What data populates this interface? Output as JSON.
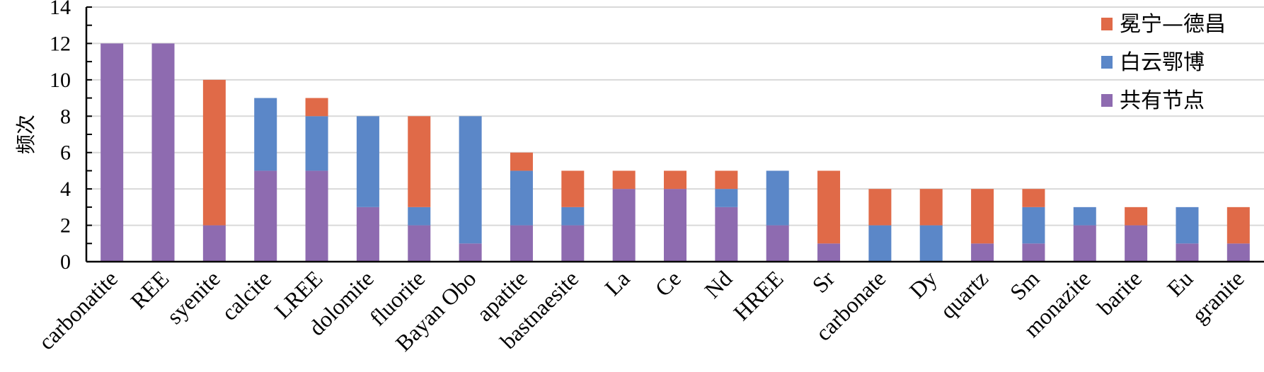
{
  "chart_data": {
    "type": "bar",
    "stacked": true,
    "ylabel": "频次",
    "ylim": [
      0,
      14
    ],
    "yticks": [
      0,
      2,
      4,
      6,
      8,
      10,
      12,
      14
    ],
    "grid": true,
    "legend_position": "top-right",
    "categories": [
      "carbonatite",
      "REE",
      "syenite",
      "calcite",
      "LREE",
      "dolomite",
      "fluorite",
      "Bayan Obo",
      "apatite",
      "bastnaesite",
      "La",
      "Ce",
      "Nd",
      "HREE",
      "Sr",
      "carbonate",
      "Dy",
      "quartz",
      "Sm",
      "monazite",
      "barite",
      "Eu",
      "granite"
    ],
    "series": [
      {
        "name": "共有节点",
        "color": "#8E6BB0",
        "values": [
          12,
          12,
          2,
          5,
          5,
          3,
          2,
          1,
          2,
          2,
          4,
          4,
          3,
          2,
          1,
          0,
          0,
          1,
          1,
          2,
          2,
          1,
          1
        ]
      },
      {
        "name": "白云鄂博",
        "color": "#5B87C8",
        "values": [
          0,
          0,
          0,
          4,
          3,
          5,
          1,
          7,
          3,
          1,
          0,
          0,
          1,
          3,
          0,
          2,
          2,
          0,
          2,
          1,
          0,
          2,
          0
        ]
      },
      {
        "name": "冕宁—德昌",
        "color": "#E06A48",
        "values": [
          0,
          0,
          8,
          0,
          1,
          0,
          5,
          0,
          1,
          2,
          1,
          1,
          1,
          0,
          4,
          2,
          2,
          3,
          1,
          0,
          1,
          0,
          2
        ]
      }
    ],
    "legend_order": [
      "冕宁—德昌",
      "白云鄂博",
      "共有节点"
    ]
  }
}
